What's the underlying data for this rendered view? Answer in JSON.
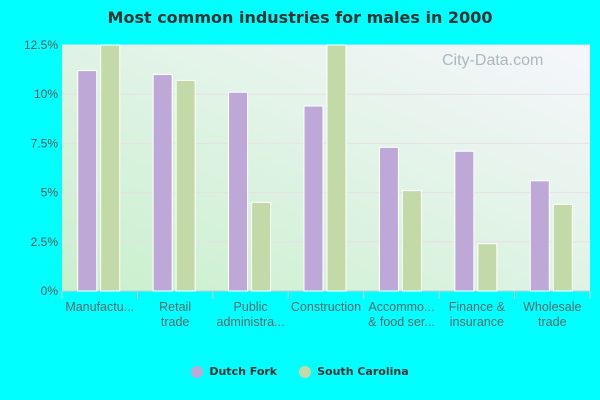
{
  "chart_data": {
    "type": "bar",
    "title": "Most common industries for males in 2000",
    "categories": [
      [
        "Manufactu..."
      ],
      [
        "Retail",
        "trade"
      ],
      [
        "Public",
        "administra..."
      ],
      [
        "Construction"
      ],
      [
        "Accommo...",
        "& food ser..."
      ],
      [
        "Finance &",
        "insurance"
      ],
      [
        "Wholesale",
        "trade"
      ]
    ],
    "series": [
      {
        "name": "Dutch Fork",
        "color": "#bea8d8",
        "values": [
          11.2,
          11.0,
          10.1,
          9.4,
          7.3,
          7.1,
          5.6
        ]
      },
      {
        "name": "South Carolina",
        "color": "#c4d9a8",
        "values": [
          12.5,
          10.7,
          4.5,
          12.5,
          5.1,
          2.4,
          4.4
        ]
      }
    ],
    "ylim": [
      0,
      12.5
    ],
    "yticks": [
      "0%",
      "2.5%",
      "5%",
      "7.5%",
      "10%",
      "12.5%"
    ],
    "grid": true,
    "legend": "bottom"
  },
  "watermark": "City-Data.com"
}
